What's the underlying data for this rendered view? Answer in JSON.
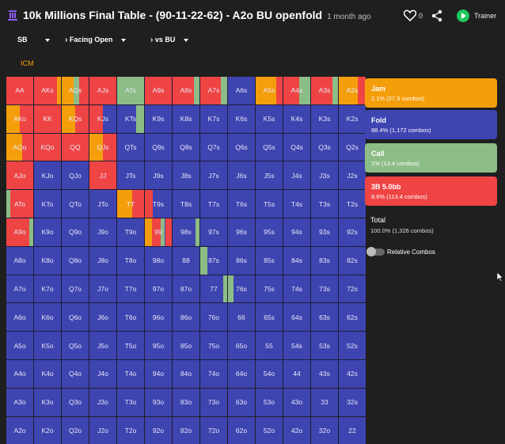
{
  "header": {
    "title": "10k Millions Final Table - (90-11-22-62) - A2o BU openfold",
    "ago": "1 month ago",
    "likes": "0",
    "trainer": "Trainer"
  },
  "nav": {
    "pos": "SB",
    "facing": "Facing Open",
    "vs": "vs BU"
  },
  "icm": "ICM",
  "colors": {
    "jam": "#f59e0b",
    "fold": "#3e44b0",
    "call": "#8dbd86",
    "raise": "#ef4444"
  },
  "grid": [
    [
      "AA",
      "AKs",
      "AQs",
      "AJs",
      "ATs",
      "A9s",
      "A8s",
      "A7s",
      "A6s",
      "A5s",
      "A4s",
      "A3s",
      "A2s"
    ],
    [
      "AKo",
      "KK",
      "KQs",
      "KJs",
      "KTs",
      "K9s",
      "K8s",
      "K7s",
      "K6s",
      "K5s",
      "K4s",
      "K3s",
      "K2s"
    ],
    [
      "AQo",
      "KQo",
      "QQ",
      "QJs",
      "QTs",
      "Q9s",
      "Q8s",
      "Q7s",
      "Q6s",
      "Q5s",
      "Q4s",
      "Q3s",
      "Q2s"
    ],
    [
      "AJo",
      "KJo",
      "QJo",
      "JJ",
      "JTs",
      "J9s",
      "J8s",
      "J7s",
      "J6s",
      "J5s",
      "J4s",
      "J3s",
      "J2s"
    ],
    [
      "ATo",
      "KTo",
      "QTo",
      "JTo",
      "TT",
      "T9s",
      "T8s",
      "T7s",
      "T6s",
      "T5s",
      "T4s",
      "T3s",
      "T2s"
    ],
    [
      "A9o",
      "K9o",
      "Q9o",
      "J9o",
      "T9o",
      "99",
      "98s",
      "97s",
      "96s",
      "95s",
      "94s",
      "93s",
      "92s"
    ],
    [
      "A8o",
      "K8o",
      "Q8o",
      "J8o",
      "T8o",
      "98o",
      "88",
      "87s",
      "86s",
      "85s",
      "84s",
      "83s",
      "82s"
    ],
    [
      "A7o",
      "K7o",
      "Q7o",
      "J7o",
      "T7o",
      "97o",
      "87o",
      "77",
      "76s",
      "75s",
      "74s",
      "73s",
      "72s"
    ],
    [
      "A6o",
      "K6o",
      "Q6o",
      "J6o",
      "T6o",
      "96o",
      "86o",
      "76o",
      "66",
      "65s",
      "64s",
      "63s",
      "62s"
    ],
    [
      "A5o",
      "K5o",
      "Q5o",
      "J5o",
      "T5o",
      "95o",
      "85o",
      "75o",
      "65o",
      "55",
      "54s",
      "53s",
      "52s"
    ],
    [
      "A4o",
      "K4o",
      "Q4o",
      "J4o",
      "T4o",
      "94o",
      "84o",
      "74o",
      "64o",
      "54o",
      "44",
      "43s",
      "42s"
    ],
    [
      "A3o",
      "K3o",
      "Q3o",
      "J3o",
      "T3o",
      "93o",
      "83o",
      "73o",
      "63o",
      "53o",
      "43o",
      "33",
      "32s"
    ],
    [
      "A2o",
      "K2o",
      "Q2o",
      "J2o",
      "T2o",
      "92o",
      "82o",
      "72o",
      "62o",
      "52o",
      "42o",
      "32o",
      "22"
    ]
  ],
  "mix": {
    "AA": [
      [
        "r",
        1
      ]
    ],
    "AKs": [
      [
        "r",
        0.85
      ],
      [
        "j",
        0.15
      ]
    ],
    "AQs": [
      [
        "j",
        0.45
      ],
      [
        "c",
        0.2
      ],
      [
        "r",
        0.35
      ]
    ],
    "AJs": [
      [
        "r",
        1
      ]
    ],
    "ATs": [
      [
        "c",
        1
      ]
    ],
    "A9s": [
      [
        "r",
        1
      ]
    ],
    "A8s": [
      [
        "r",
        0.8
      ],
      [
        "c",
        0.2
      ]
    ],
    "A7s": [
      [
        "r",
        0.75
      ],
      [
        "c",
        0.25
      ]
    ],
    "A5s": [
      [
        "j",
        0.75
      ],
      [
        "r",
        0.25
      ]
    ],
    "A4s": [
      [
        "r",
        0.6
      ],
      [
        "c",
        0.4
      ]
    ],
    "A3s": [
      [
        "r",
        0.8
      ],
      [
        "c",
        0.2
      ]
    ],
    "A2s": [
      [
        "j",
        0.7
      ],
      [
        "r",
        0.3
      ]
    ],
    "AKo": [
      [
        "j",
        0.5
      ],
      [
        "r",
        0.5
      ]
    ],
    "KK": [
      [
        "r",
        1
      ]
    ],
    "KQs": [
      [
        "j",
        0.5
      ],
      [
        "r",
        0.5
      ]
    ],
    "KJs": [
      [
        "r",
        0.5
      ],
      [
        "f",
        0.5
      ]
    ],
    "KTs": [
      [
        "f",
        0.7
      ],
      [
        "c",
        0.3
      ]
    ],
    "AQo": [
      [
        "j",
        0.6
      ],
      [
        "r",
        0.4
      ]
    ],
    "KQo": [
      [
        "r",
        1
      ]
    ],
    "QQ": [
      [
        "r",
        1
      ]
    ],
    "QJs": [
      [
        "j",
        0.5
      ],
      [
        "r",
        0.5
      ]
    ],
    "AJo": [
      [
        "r",
        1
      ]
    ],
    "JJ": [
      [
        "r",
        1
      ]
    ],
    "ATo": [
      [
        "c",
        0.15
      ],
      [
        "r",
        0.85
      ]
    ],
    "TT": [
      [
        "j",
        0.55
      ],
      [
        "r",
        0.45
      ]
    ],
    "T9s": [
      [
        "r",
        0.3
      ],
      [
        "f",
        0.7
      ]
    ],
    "A9o": [
      [
        "r",
        0.85
      ],
      [
        "c",
        0.15
      ]
    ],
    "99": [
      [
        "j",
        0.25
      ],
      [
        "r",
        0.35
      ],
      [
        "c",
        0.15
      ],
      [
        "r",
        0.25
      ]
    ],
    "98s": [
      [
        "f",
        0.85
      ],
      [
        "c",
        0.15
      ]
    ],
    "87s": [
      [
        "c",
        0.25
      ],
      [
        "f",
        0.75
      ]
    ],
    "77": [
      [
        "f",
        0.85
      ],
      [
        "c",
        0.15
      ]
    ],
    "76s": [
      [
        "c",
        0.2
      ],
      [
        "f",
        0.8
      ]
    ]
  },
  "options": [
    {
      "name": "Jam",
      "stat": "2.1% (27.3 combos)",
      "color": "#f59e0b"
    },
    {
      "name": "Fold",
      "stat": "88.4% (1,172 combos)",
      "color": "#3e44b0"
    },
    {
      "name": "Call",
      "stat": "1% (13.4 combos)",
      "color": "#8dbd86"
    },
    {
      "name": "3B 5.0bb",
      "stat": "8.6% (113.4 combos)",
      "color": "#ef4444"
    }
  ],
  "total": {
    "label": "Total",
    "stat": "100.0% (1,326 combos)"
  },
  "toggle": "Relative Combos"
}
